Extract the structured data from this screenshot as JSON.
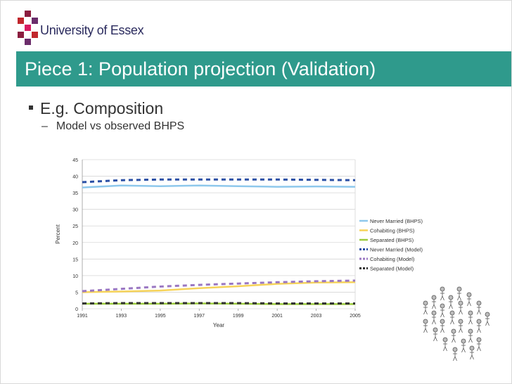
{
  "header": {
    "logo_text": "University of Essex",
    "logo_colors": [
      "#8b1d3f",
      "#c1272d",
      "#6b2d6b",
      "#d81b60"
    ]
  },
  "slide": {
    "title": "Piece 1: Population projection (Validation)",
    "title_bar_color": "#2f9a8c",
    "bullet_level1": "E.g. Composition",
    "bullet_level2": "Model vs observed BHPS",
    "bullet_level2_marker": "–"
  },
  "decoration": {
    "icon": "crowd-of-people-icon"
  },
  "chart_data": {
    "type": "line",
    "title": "",
    "xlabel": "Year",
    "ylabel": "Percent",
    "ylim": [
      0,
      45
    ],
    "xlim": [
      1991,
      2005
    ],
    "yticks": [
      "0",
      "5",
      "10",
      "15",
      "20",
      "25",
      "30",
      "35",
      "40",
      "45"
    ],
    "xticks": [
      "1991",
      "1993",
      "1995",
      "1997",
      "1999",
      "2001",
      "2003",
      "2005"
    ],
    "grid": true,
    "legend_position": "right",
    "x": [
      1991,
      1993,
      1995,
      1997,
      1999,
      2001,
      2003,
      2005
    ],
    "series": [
      {
        "name": "Never Married (BHPS)",
        "color": "#8ec8ec",
        "style": "solid",
        "values": [
          36.6,
          37.2,
          37.0,
          37.2,
          37.0,
          36.8,
          36.9,
          36.8
        ]
      },
      {
        "name": "Cohabiting (BHPS)",
        "color": "#f6d35a",
        "style": "solid",
        "values": [
          5.0,
          5.2,
          5.5,
          6.2,
          6.8,
          7.5,
          7.9,
          8.0
        ]
      },
      {
        "name": "Separated (BHPS)",
        "color": "#9ccc3c",
        "style": "solid",
        "values": [
          1.5,
          1.5,
          1.5,
          1.6,
          1.5,
          1.4,
          1.4,
          1.4
        ]
      },
      {
        "name": "Never Married (Model)",
        "color": "#2a4fa5",
        "style": "dashed",
        "values": [
          38.2,
          38.8,
          39.0,
          39.0,
          39.0,
          39.0,
          38.9,
          38.8
        ]
      },
      {
        "name": "Cohabiting (Model)",
        "color": "#9a77c2",
        "style": "dashed",
        "values": [
          5.3,
          6.0,
          6.7,
          7.2,
          7.6,
          8.0,
          8.3,
          8.5
        ]
      },
      {
        "name": "Separated (Model)",
        "color": "#333333",
        "style": "dashed",
        "values": [
          1.6,
          1.7,
          1.7,
          1.7,
          1.7,
          1.6,
          1.6,
          1.6
        ]
      }
    ]
  }
}
